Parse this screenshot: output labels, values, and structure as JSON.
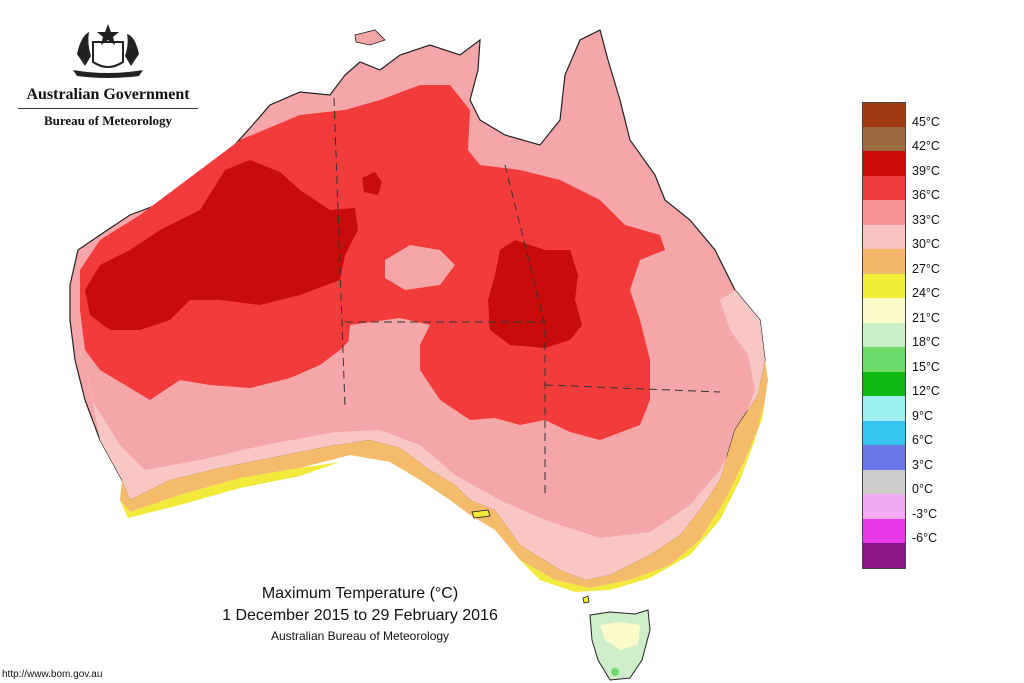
{
  "header": {
    "org_name": "Australian Government",
    "agency_name": "Bureau of Meteorology",
    "crest_icon": "coat-of-arms-icon"
  },
  "caption": {
    "title": "Maximum Temperature (°C)",
    "period": "1 December 2015 to 29 February 2016",
    "source": "Australian Bureau of Meteorology"
  },
  "footer": {
    "url": "http://www.bom.gov.au"
  },
  "legend": {
    "items": [
      {
        "label": "45°C",
        "color": "#a0390f"
      },
      {
        "label": "42°C",
        "color": "#9e6b40"
      },
      {
        "label": "39°C",
        "color": "#cc0a0a"
      },
      {
        "label": "36°C",
        "color": "#f03c3c"
      },
      {
        "label": "33°C",
        "color": "#f59394"
      },
      {
        "label": "30°C",
        "color": "#f9c3c0"
      },
      {
        "label": "27°C",
        "color": "#f5b86a"
      },
      {
        "label": "24°C",
        "color": "#f2ee3a"
      },
      {
        "label": "21°C",
        "color": "#fafacb"
      },
      {
        "label": "18°C",
        "color": "#c8f0c8"
      },
      {
        "label": "15°C",
        "color": "#6cdb6c"
      },
      {
        "label": "12°C",
        "color": "#12b812"
      },
      {
        "label": "9°C",
        "color": "#9ef0f0"
      },
      {
        "label": "6°C",
        "color": "#34c4ec"
      },
      {
        "label": "3°C",
        "color": "#6a76e6"
      },
      {
        "label": "0°C",
        "color": "#cccccc"
      },
      {
        "label": "-3°C",
        "color": "#f2aaf2"
      },
      {
        "label": "-6°C",
        "color": "#e838e8"
      }
    ],
    "bottom_color": "#8a168a"
  }
}
